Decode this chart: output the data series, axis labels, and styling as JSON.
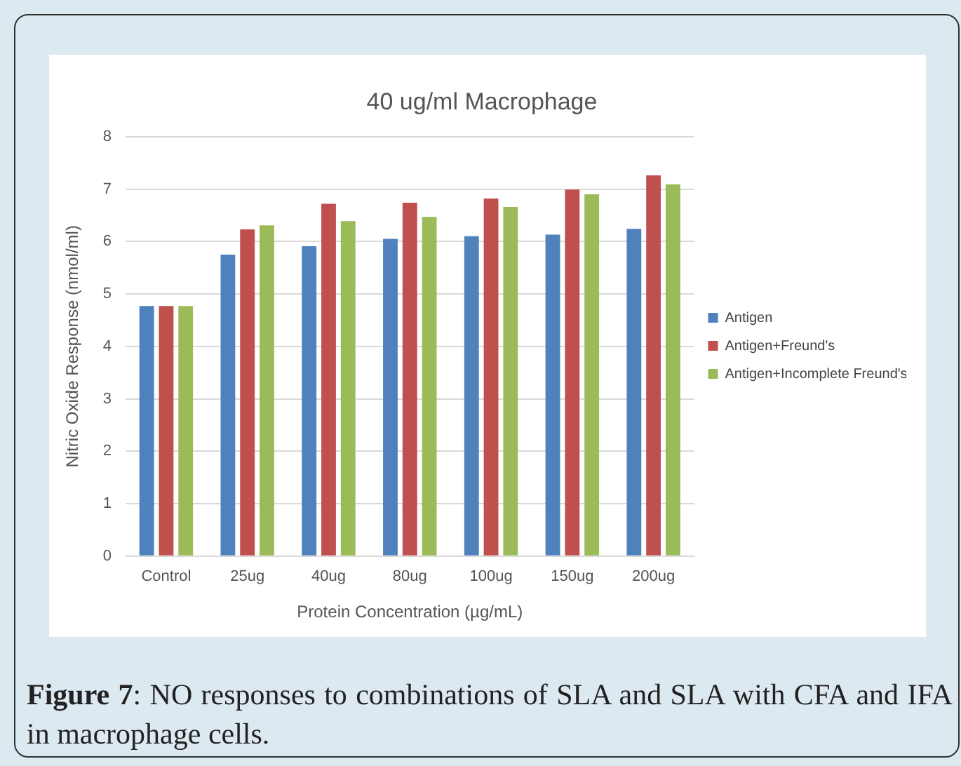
{
  "chart_data": {
    "type": "bar",
    "title": "40 ug/ml Macrophage",
    "xlabel": "Protein Concentration (µg/mL)",
    "ylabel": "Nitric Oxide Response (nmol/ml)",
    "categories": [
      "Control",
      "25ug",
      "40ug",
      "80ug",
      "100ug",
      "150ug",
      "200ug"
    ],
    "series": [
      {
        "name": "Antigen",
        "color": "#4f81bd",
        "values": [
          4.77,
          5.75,
          5.91,
          6.05,
          6.1,
          6.13,
          6.24
        ]
      },
      {
        "name": "Antigen+Freund's",
        "color": "#c0504d",
        "values": [
          4.77,
          6.23,
          6.72,
          6.74,
          6.82,
          6.99,
          7.26
        ]
      },
      {
        "name": "Antigen+Incomplete Freund's",
        "color": "#9bbb59",
        "values": [
          4.77,
          6.31,
          6.39,
          6.47,
          6.66,
          6.9,
          7.09
        ]
      }
    ],
    "ylim": [
      0,
      8
    ],
    "yticks": [
      0,
      1,
      2,
      3,
      4,
      5,
      6,
      7,
      8
    ],
    "grid": "y",
    "legend": "right",
    "annotations": [
      "Figure 7: NO responses to combinations of SLA and SLA with CFA and IFA in macrophage cells."
    ]
  }
}
